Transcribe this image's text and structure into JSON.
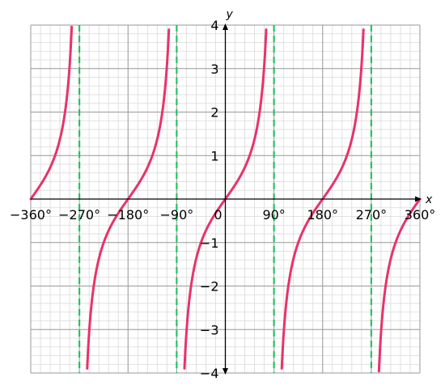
{
  "chart_data": {
    "type": "line",
    "function": "y = tan(x)",
    "xlabel": "x",
    "ylabel": "y",
    "xlim": [
      -360,
      360
    ],
    "ylim": [
      -4,
      4
    ],
    "x_ticks": [
      {
        "value": -360,
        "label": "−360°"
      },
      {
        "value": -270,
        "label": "−270°"
      },
      {
        "value": -180,
        "label": "−180°"
      },
      {
        "value": -90,
        "label": "−90°"
      },
      {
        "value": 0,
        "label": "0"
      },
      {
        "value": 90,
        "label": "90°"
      },
      {
        "value": 180,
        "label": "180°"
      },
      {
        "value": 270,
        "label": "270°"
      },
      {
        "value": 360,
        "label": "360°"
      }
    ],
    "y_ticks": [
      {
        "value": 4,
        "label": "4"
      },
      {
        "value": 3,
        "label": "3"
      },
      {
        "value": 2,
        "label": "2"
      },
      {
        "value": 1,
        "label": "1"
      },
      {
        "value": -1,
        "label": "−1"
      },
      {
        "value": -2,
        "label": "−2"
      },
      {
        "value": -3,
        "label": "−3"
      },
      {
        "value": -4,
        "label": "−4"
      }
    ],
    "asymptotes": [
      -270,
      -90,
      90,
      270
    ],
    "grid": true,
    "minor_grid_step_x": 18,
    "minor_grid_step_y": 0.2,
    "curve_color": "#e8336a",
    "asymptote_color": "#22c55e",
    "major_grid_color": "#9a9a9a",
    "minor_grid_color": "#d9d9d9"
  }
}
